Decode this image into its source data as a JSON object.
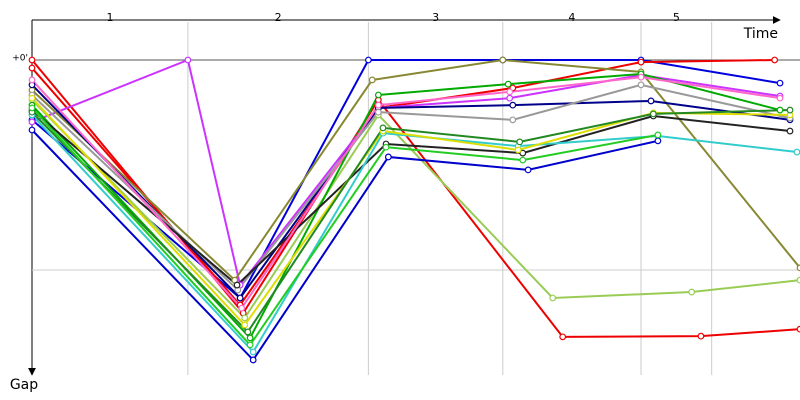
{
  "chart_data": {
    "type": "line",
    "x_label": "Time",
    "y_label": "Gap",
    "xlim": [
      0,
      100
    ],
    "ylim": [
      0,
      90
    ],
    "yticks": [
      {
        "value": 0,
        "label": "+0'"
      }
    ],
    "ygrid_lines": [
      60
    ],
    "laps": [
      {
        "label": "1",
        "start": 0,
        "end": 20.3
      },
      {
        "label": "2",
        "start": 20.3,
        "end": 43.8
      },
      {
        "label": "3",
        "start": 43.8,
        "end": 61.3
      },
      {
        "label": "4",
        "start": 61.3,
        "end": 79.3
      },
      {
        "label": "5",
        "start": 79.3,
        "end": 88.5
      }
    ],
    "series": [
      {
        "color": "#0000dd",
        "x": [
          0,
          27.1,
          43.8,
          61.3,
          79.3,
          97.4
        ],
        "values": [
          17.1,
          68,
          0,
          0,
          0,
          6.6
        ]
      },
      {
        "color": "#ee0000",
        "x": [
          0,
          27.5,
          45.1,
          69.1,
          87.1,
          100
        ],
        "values": [
          0,
          72.3,
          11.4,
          79.1,
          78.9,
          76.9
        ]
      },
      {
        "color": "#ee0000",
        "x": [
          0,
          27.1,
          45.1,
          62.6,
          79.3,
          96.7
        ],
        "values": [
          2.3,
          70,
          13.7,
          8,
          0.6,
          0
        ]
      },
      {
        "color": "#cc33ff",
        "x": [
          0,
          20.3,
          27.1,
          45.1,
          62.2,
          79.3,
          97.4
        ],
        "values": [
          17.7,
          0,
          64.3,
          13.7,
          10.9,
          4.3,
          10.3
        ]
      },
      {
        "color": "#888833",
        "x": [
          0,
          26.4,
          44.3,
          61.3,
          79.3,
          100
        ],
        "values": [
          8.6,
          62.9,
          5.7,
          0,
          3.4,
          59.4
        ]
      },
      {
        "color": "#99cc55",
        "x": [
          0,
          27.7,
          45.1,
          67.8,
          85.9,
          100
        ],
        "values": [
          11.4,
          73.7,
          15.7,
          68,
          66.3,
          62.9
        ]
      },
      {
        "color": "#00aa00",
        "x": [
          0,
          28.4,
          45.1,
          62.0,
          79.3,
          97.4
        ],
        "values": [
          12.9,
          79.4,
          10,
          6.9,
          4,
          14.3
        ]
      },
      {
        "color": "#000088",
        "x": [
          0,
          27.1,
          45.1,
          62.6,
          80.6,
          98.7
        ],
        "values": [
          7.1,
          68,
          13.7,
          12.9,
          11.7,
          17.1
        ]
      },
      {
        "color": "#999999",
        "x": [
          0,
          26.8,
          45.1,
          62.6,
          79.3,
          98.7
        ],
        "values": [
          10,
          65.7,
          14.9,
          17.1,
          7.1,
          16.6
        ]
      },
      {
        "color": "#222222",
        "x": [
          0,
          26.7,
          46.1,
          63.9,
          80.9,
          98.7
        ],
        "values": [
          14.3,
          64.3,
          24,
          26.6,
          16,
          20.3
        ]
      },
      {
        "color": "#33cccc",
        "x": [
          0,
          28.8,
          45.7,
          63.3,
          81.5,
          99.6
        ],
        "values": [
          15.7,
          83.4,
          20.9,
          24.6,
          21.7,
          26.3
        ]
      },
      {
        "color": "#dddd00",
        "x": [
          0,
          27.7,
          45.7,
          63.3,
          80.9,
          98.7
        ],
        "values": [
          10.9,
          75.7,
          20.3,
          25.7,
          15.1,
          15.7
        ]
      },
      {
        "color": "#228822",
        "x": [
          0,
          28.1,
          45.7,
          63.5,
          80.9,
          98.7
        ],
        "values": [
          14.9,
          77.7,
          19.4,
          23.4,
          15.4,
          14.3
        ]
      },
      {
        "color": "#0000cc",
        "x": [
          0,
          28.8,
          46.4,
          64.6,
          81.5
        ],
        "values": [
          20,
          85.7,
          27.7,
          31.4,
          23.1
        ]
      },
      {
        "color": "#22cc22",
        "x": [
          0,
          28.4,
          46.1,
          63.9,
          81.5
        ],
        "values": [
          13.7,
          81.4,
          24.9,
          28.6,
          21.4
        ]
      },
      {
        "color": "#ff66cc",
        "x": [
          0,
          27.3,
          45.1,
          62.2,
          79.3,
          97.4
        ],
        "values": [
          5.7,
          70.9,
          12.9,
          9.1,
          4.9,
          10.9
        ]
      }
    ]
  }
}
